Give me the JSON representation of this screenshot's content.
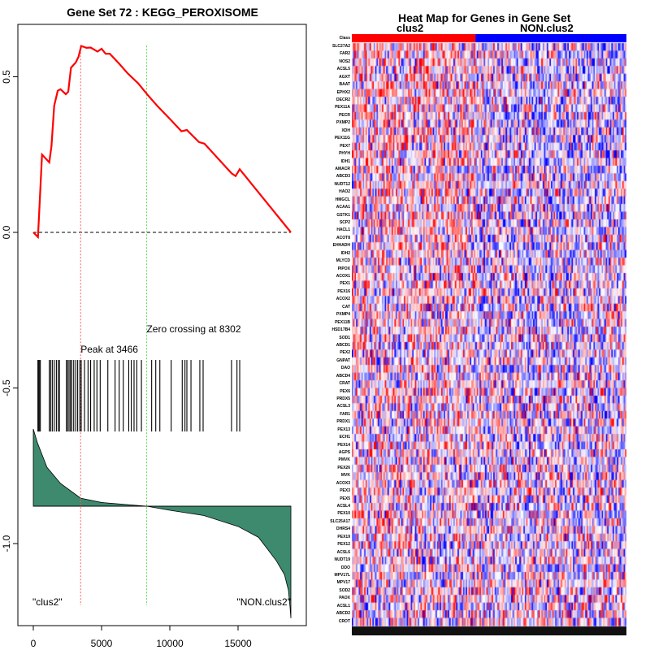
{
  "chart_data": [
    {
      "type": "line",
      "title": "Gene Set  72 : KEGG_PEROXISOME",
      "xlabel": "",
      "ylabel": "",
      "xlim": [
        -1100,
        19800
      ],
      "ylim": [
        -1.27,
        0.67
      ],
      "x_ticks": [
        0,
        5000,
        10000,
        15000
      ],
      "x_tick_labels": [
        "0",
        "5000",
        "10000",
        "15000"
      ],
      "y_ticks": [
        0.5,
        0.0,
        -0.5,
        -1.0
      ],
      "y_tick_labels": [
        "0.5",
        "0.0",
        "-0.5",
        "-1.0"
      ],
      "grid": false,
      "es_curve": [
        [
          0,
          0.0
        ],
        [
          340,
          -0.015
        ],
        [
          400,
          0.037
        ],
        [
          640,
          0.25
        ],
        [
          1170,
          0.225
        ],
        [
          1330,
          0.277
        ],
        [
          1530,
          0.407
        ],
        [
          1790,
          0.455
        ],
        [
          1990,
          0.46
        ],
        [
          2380,
          0.444
        ],
        [
          2560,
          0.452
        ],
        [
          2760,
          0.529
        ],
        [
          3110,
          0.546
        ],
        [
          3310,
          0.564
        ],
        [
          3510,
          0.599
        ],
        [
          3900,
          0.593
        ],
        [
          4200,
          0.594
        ],
        [
          4700,
          0.581
        ],
        [
          5000,
          0.59
        ],
        [
          5300,
          0.574
        ],
        [
          5600,
          0.574
        ],
        [
          6290,
          0.542
        ],
        [
          6890,
          0.512
        ],
        [
          7680,
          0.479
        ],
        [
          8370,
          0.442
        ],
        [
          9070,
          0.407
        ],
        [
          10060,
          0.362
        ],
        [
          10850,
          0.325
        ],
        [
          11250,
          0.329
        ],
        [
          12140,
          0.29
        ],
        [
          12540,
          0.285
        ],
        [
          14520,
          0.19
        ],
        [
          14820,
          0.181
        ],
        [
          15120,
          0.203
        ],
        [
          18870,
          0.0
        ]
      ],
      "hits": [
        337,
        377,
        437,
        516,
        1170,
        1270,
        1390,
        1530,
        1690,
        1820,
        1920,
        2420,
        2520,
        2620,
        2720,
        2820,
        2960,
        3110,
        3250,
        3410,
        3510,
        3750,
        4010,
        4200,
        4460,
        4660,
        4900,
        5460,
        5990,
        6290,
        6590,
        6990,
        7180,
        7380,
        7580,
        7920,
        8670,
        8970,
        9270,
        10100,
        10910,
        11110,
        11250,
        11550,
        12200,
        12440,
        14520,
        14920,
        15120
      ],
      "hit_band": [
        -0.64,
        -0.41
      ],
      "ranked_metric_baseline": -0.88,
      "ranked_metric": [
        [
          0,
          -0.632
        ],
        [
          300,
          -0.676
        ],
        [
          1000,
          -0.755
        ],
        [
          2000,
          -0.807
        ],
        [
          3466,
          -0.854
        ],
        [
          5000,
          -0.868
        ],
        [
          8302,
          -0.88
        ],
        [
          10000,
          -0.893
        ],
        [
          12500,
          -0.91
        ],
        [
          15000,
          -0.945
        ],
        [
          16500,
          -0.98
        ],
        [
          17800,
          -1.055
        ],
        [
          18400,
          -1.1
        ],
        [
          18690,
          -1.15
        ],
        [
          18800,
          -1.2
        ],
        [
          18870,
          -1.24
        ]
      ],
      "peak": {
        "rank": 3466,
        "label": "Peak at 3466"
      },
      "zero_crossing": {
        "rank": 8302,
        "label": "Zero crossing at 8302"
      },
      "left_class_label": "\"clus2\"",
      "right_class_label": "\"NON.clus2\"",
      "colors": {
        "es": "#ff0000",
        "peak": "#ff5555",
        "zero": "#55dd55",
        "metric": "#3d8a6e"
      }
    },
    {
      "type": "heatmap",
      "title": "Heat Map for Genes in Gene Set",
      "class_row_label": "Class",
      "classes": [
        {
          "name": "clus2",
          "color": "#ff0000",
          "fraction": 0.45
        },
        {
          "name": "NON.clus2",
          "color": "#0000ff",
          "fraction": 0.55
        }
      ],
      "genes": [
        "SLC27A2",
        "FAR2",
        "NOS2",
        "ACSL5",
        "AGXT",
        "BAAT",
        "EPHX2",
        "DECR2",
        "PEX11A",
        "PECR",
        "PXMP2",
        "XDH",
        "PEX11G",
        "PEX7",
        "PHYH",
        "IDH1",
        "AMACR",
        "ABCD3",
        "NUDT12",
        "HAO2",
        "HMGCL",
        "ACAA1",
        "GSTK1",
        "SCP2",
        "HACL1",
        "ACOT8",
        "EHHADH",
        "IDH2",
        "MLYCD",
        "PIPOX",
        "ACOX1",
        "PEX1",
        "PEX16",
        "ACOX2",
        "CAT",
        "PXMP4",
        "PEX11B",
        "HSD17B4",
        "SOD1",
        "ABCD1",
        "PEX2",
        "GNPAT",
        "DAO",
        "ABCD4",
        "CRAT",
        "PEX6",
        "PRDX5",
        "ACSL3",
        "FAR1",
        "PRDX1",
        "PEX13",
        "ECH1",
        "PEX14",
        "AGPS",
        "PMVK",
        "PEX26",
        "MVK",
        "ACOX3",
        "PEX3",
        "PEX5",
        "ACSL4",
        "PEX10",
        "SLC25A17",
        "DHRS4",
        "PEX19",
        "PEX12",
        "ACSL6",
        "NUDT19",
        "DDO",
        "MPV17L",
        "MPV17",
        "SOD2",
        "PAOX",
        "ACSL1",
        "ABCD2",
        "CROT"
      ]
    }
  ]
}
